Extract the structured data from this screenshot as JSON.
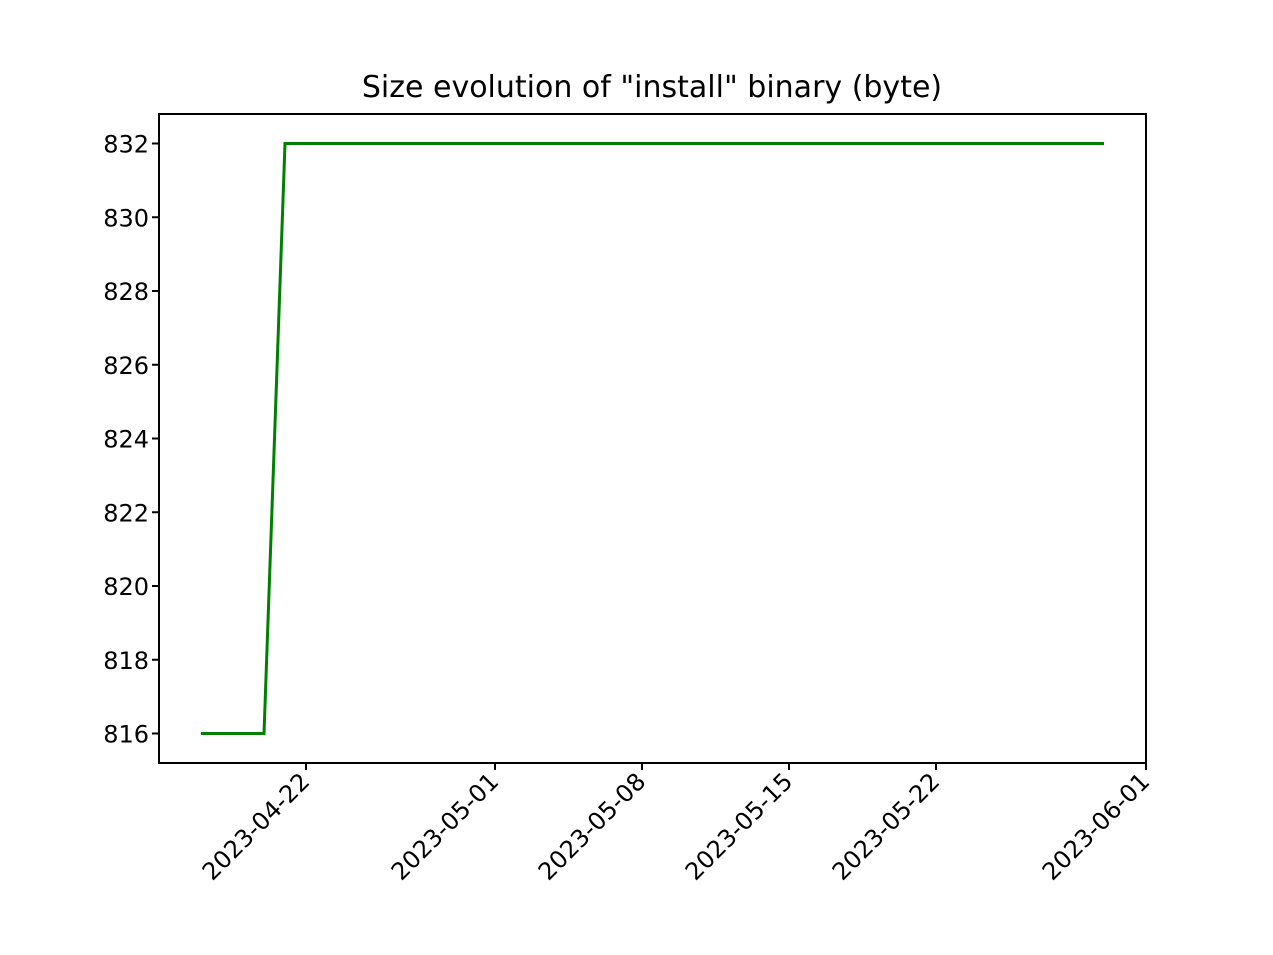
{
  "chart_data": {
    "type": "line",
    "title": "Size evolution of \"install\" binary (byte)",
    "xlabel": "",
    "ylabel": "",
    "x_axis_type": "date",
    "xlim": [
      "2023-04-15",
      "2023-06-01"
    ],
    "ylim": [
      815.2,
      832.8
    ],
    "grid": false,
    "legend": "none",
    "x_ticks": [
      "2023-04-22",
      "2023-05-01",
      "2023-05-08",
      "2023-05-15",
      "2023-05-22",
      "2023-06-01"
    ],
    "y_ticks": [
      816,
      818,
      820,
      822,
      824,
      826,
      828,
      830,
      832
    ],
    "series": [
      {
        "color": "#008000",
        "x": [
          "2023-04-17",
          "2023-04-20",
          "2023-04-21",
          "2023-05-30"
        ],
        "y": [
          816,
          816,
          832,
          832
        ]
      }
    ]
  }
}
